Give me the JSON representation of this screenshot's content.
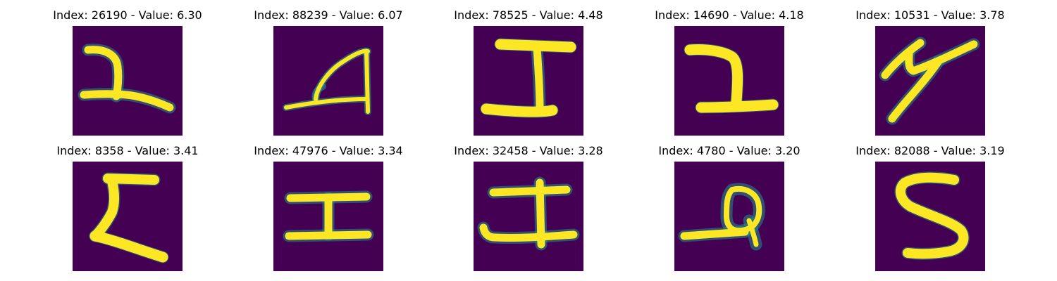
{
  "colors": {
    "background": "#440154",
    "stroke_core": "#fde725",
    "stroke_halo": "#21918c"
  },
  "panels": [
    {
      "title": "Index: 26190 - Value: 6.30",
      "glyph": "glyph-26190"
    },
    {
      "title": "Index: 88239 - Value: 6.07",
      "glyph": "glyph-88239"
    },
    {
      "title": "Index: 78525 - Value: 4.48",
      "glyph": "glyph-78525"
    },
    {
      "title": "Index: 14690 - Value: 4.18",
      "glyph": "glyph-14690"
    },
    {
      "title": "Index: 10531 - Value: 3.78",
      "glyph": "glyph-10531"
    },
    {
      "title": "Index: 8358 - Value: 3.41",
      "glyph": "glyph-8358"
    },
    {
      "title": "Index: 47976 - Value: 3.34",
      "glyph": "glyph-47976"
    },
    {
      "title": "Index: 32458 - Value: 3.28",
      "glyph": "glyph-32458"
    },
    {
      "title": "Index: 4780 - Value: 3.20",
      "glyph": "glyph-4780"
    },
    {
      "title": "Index: 82088 - Value: 3.19",
      "glyph": "glyph-82088"
    }
  ]
}
